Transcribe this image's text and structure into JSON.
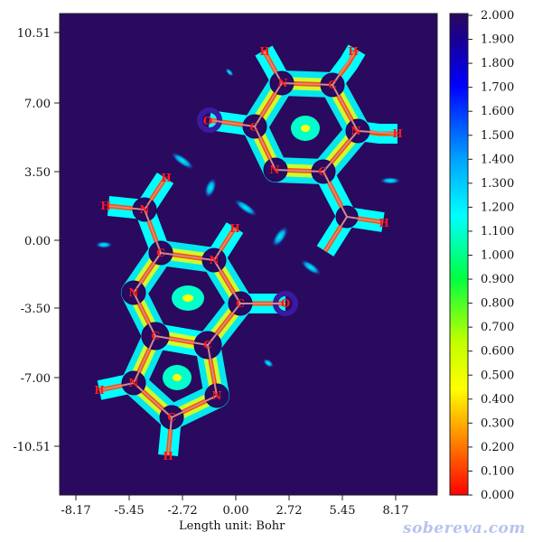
{
  "plot": {
    "x_ticks": [
      "-8.17",
      "-5.45",
      "-2.72",
      "0.00",
      "2.72",
      "5.45",
      "8.17"
    ],
    "y_ticks": [
      "10.51",
      "7.00",
      "3.50",
      "0.00",
      "-3.50",
      "-7.00",
      "-10.51"
    ],
    "unit_label": "Length unit: Bohr",
    "background_color": "#2a0a5e"
  },
  "colorbar": {
    "labels": [
      "2.000",
      "1.900",
      "1.800",
      "1.700",
      "1.600",
      "1.500",
      "1.400",
      "1.300",
      "1.200",
      "1.100",
      "1.000",
      "0.900",
      "0.800",
      "0.700",
      "0.600",
      "0.500",
      "0.400",
      "0.300",
      "0.200",
      "0.100",
      "0.000"
    ],
    "colors": [
      "#2a0a5e",
      "#0000ff",
      "#00a0ff",
      "#00ffff",
      "#00ff60",
      "#c0ff00",
      "#ffff00",
      "#ff9000",
      "#ff0000"
    ]
  },
  "atom_labels": [
    "H",
    "H",
    "N",
    "C",
    "C",
    "N",
    "O",
    "H",
    "C",
    "H",
    "N",
    "H",
    "H",
    "N",
    "C",
    "N",
    "H",
    "N",
    "C",
    "O",
    "C",
    "C",
    "H",
    "N",
    "N",
    "C",
    "H"
  ],
  "watermark": "sobereva.com"
}
